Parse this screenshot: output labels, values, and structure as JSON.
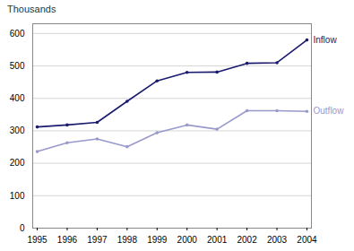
{
  "chart_data": {
    "type": "line",
    "ylabel": "Thousands",
    "x": [
      1995,
      1996,
      1997,
      1998,
      1999,
      2000,
      2001,
      2002,
      2003,
      2004
    ],
    "series": [
      {
        "name": "Inflow",
        "color": "#1a1a6e",
        "marker": "circle",
        "line_style": "solid",
        "values": [
          312,
          318,
          326,
          391,
          454,
          480,
          481,
          508,
          510,
          580
        ]
      },
      {
        "name": "Outflow",
        "color": "#9999cc",
        "marker": "circle",
        "line_style": "solid",
        "values": [
          236,
          263,
          275,
          251,
          294,
          318,
          305,
          362,
          362,
          360
        ]
      }
    ],
    "xlim": [
      1994.85,
      2004.15
    ],
    "xticks": [
      1995,
      1996,
      1997,
      1998,
      1999,
      2000,
      2001,
      2002,
      2003,
      2004
    ],
    "ylim": [
      0,
      630
    ],
    "yticks": [
      0,
      100,
      200,
      300,
      400,
      500,
      600
    ],
    "grid": true
  }
}
